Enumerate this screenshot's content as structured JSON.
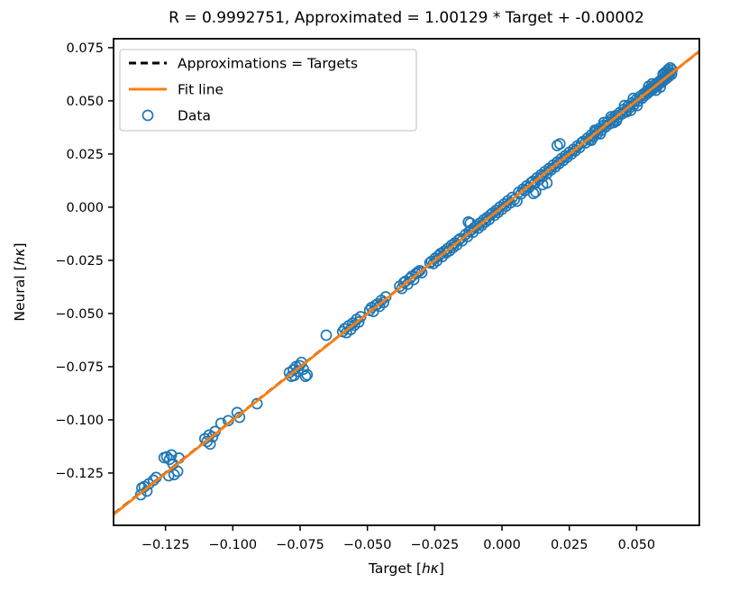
{
  "figure": {
    "title": "R = 0.9992751, Approximated = 1.00129 * Target + -0.00002"
  },
  "axes": {
    "xlabel": {
      "prefix": "Target [",
      "math": "hκ",
      "suffix": "]"
    },
    "ylabel": {
      "prefix": "Neural [",
      "math": "hκ",
      "suffix": "]"
    }
  },
  "chart_data": {
    "type": "scatter",
    "title": "R = 0.9992751, Approximated = 1.00129 * Target + -0.00002",
    "xlabel": "Target [hκ]",
    "ylabel": "Neural [hκ]",
    "xlim": [
      -0.1443,
      0.0733
    ],
    "ylim": [
      -0.1496,
      0.0792
    ],
    "grid": false,
    "legend_position": "upper left",
    "xticks": [
      -0.125,
      -0.1,
      -0.075,
      -0.05,
      -0.025,
      0.0,
      0.025,
      0.05
    ],
    "xtick_labels": [
      "−0.125",
      "−0.100",
      "−0.075",
      "−0.050",
      "−0.025",
      "0.000",
      "0.025",
      "0.050"
    ],
    "yticks": [
      0.075,
      0.05,
      0.025,
      0.0,
      -0.025,
      -0.05,
      -0.075,
      -0.1,
      -0.125
    ],
    "ytick_labels": [
      "0.075",
      "0.050",
      "0.025",
      "0.000",
      "−0.025",
      "−0.050",
      "−0.075",
      "−0.100",
      "−0.125"
    ],
    "legend": [
      {
        "label": "Approximations = Targets",
        "type": "dashed-line",
        "color": "#000000"
      },
      {
        "label": "Fit line",
        "type": "line",
        "color": "#ff7f0e"
      },
      {
        "label": "Data",
        "type": "circle",
        "color": "#1f77b4"
      }
    ],
    "identity_line": {
      "slope": 1.0,
      "intercept": 0.0,
      "color": "#000000",
      "style": "dashed"
    },
    "fit_line": {
      "slope": 1.00129,
      "intercept": -2e-05,
      "color": "#ff7f0e",
      "style": "solid",
      "r_value": 0.9992751
    },
    "marker": {
      "shape": "circle",
      "color": "#1f77b4",
      "filled": false,
      "radius_px": 5.5
    },
    "points": [
      [
        -0.1342,
        -0.1352
      ],
      [
        -0.1338,
        -0.132
      ],
      [
        -0.1329,
        -0.1314
      ],
      [
        -0.1319,
        -0.1335
      ],
      [
        -0.1312,
        -0.1301
      ],
      [
        -0.1295,
        -0.1284
      ],
      [
        -0.1285,
        -0.1271
      ],
      [
        -0.1255,
        -0.1178
      ],
      [
        -0.1245,
        -0.1174
      ],
      [
        -0.1238,
        -0.1263
      ],
      [
        -0.1235,
        -0.1186
      ],
      [
        -0.1228,
        -0.1165
      ],
      [
        -0.1222,
        -0.1208
      ],
      [
        -0.1218,
        -0.1258
      ],
      [
        -0.1205,
        -0.1242
      ],
      [
        -0.12,
        -0.118
      ],
      [
        -0.1104,
        -0.1089
      ],
      [
        -0.1096,
        -0.1102
      ],
      [
        -0.1088,
        -0.1072
      ],
      [
        -0.1084,
        -0.1114
      ],
      [
        -0.1075,
        -0.108
      ],
      [
        -0.1066,
        -0.1055
      ],
      [
        -0.1044,
        -0.1017
      ],
      [
        -0.1017,
        -0.1004
      ],
      [
        -0.0984,
        -0.0966
      ],
      [
        -0.0975,
        -0.0988
      ],
      [
        -0.091,
        -0.0924
      ],
      [
        -0.079,
        -0.0778
      ],
      [
        -0.0782,
        -0.0795
      ],
      [
        -0.0775,
        -0.0765
      ],
      [
        -0.0772,
        -0.0792
      ],
      [
        -0.0765,
        -0.075
      ],
      [
        -0.0758,
        -0.0772
      ],
      [
        -0.0752,
        -0.0745
      ],
      [
        -0.0745,
        -0.073
      ],
      [
        -0.0738,
        -0.0762
      ],
      [
        -0.073,
        -0.0795
      ],
      [
        -0.0724,
        -0.0788
      ],
      [
        -0.0653,
        -0.0602
      ],
      [
        -0.0592,
        -0.0585
      ],
      [
        -0.0585,
        -0.0572
      ],
      [
        -0.0578,
        -0.059
      ],
      [
        -0.057,
        -0.0558
      ],
      [
        -0.0562,
        -0.0575
      ],
      [
        -0.0555,
        -0.0545
      ],
      [
        -0.0548,
        -0.0555
      ],
      [
        -0.054,
        -0.0528
      ],
      [
        -0.0532,
        -0.054
      ],
      [
        -0.0525,
        -0.0515
      ],
      [
        -0.0492,
        -0.0485
      ],
      [
        -0.0485,
        -0.0472
      ],
      [
        -0.0478,
        -0.049
      ],
      [
        -0.047,
        -0.0462
      ],
      [
        -0.0462,
        -0.0455
      ],
      [
        -0.0455,
        -0.0466
      ],
      [
        -0.0448,
        -0.0438
      ],
      [
        -0.044,
        -0.0448
      ],
      [
        -0.0432,
        -0.0422
      ],
      [
        -0.038,
        -0.0372
      ],
      [
        -0.0372,
        -0.0382
      ],
      [
        -0.0365,
        -0.0355
      ],
      [
        -0.0358,
        -0.0348
      ],
      [
        -0.035,
        -0.0362
      ],
      [
        -0.0342,
        -0.0335
      ],
      [
        -0.0335,
        -0.0325
      ],
      [
        -0.0328,
        -0.034
      ],
      [
        -0.032,
        -0.0312
      ],
      [
        -0.0312,
        -0.0305
      ],
      [
        -0.0305,
        -0.0298
      ],
      [
        -0.0298,
        -0.0308
      ],
      [
        -0.0268,
        -0.0262
      ],
      [
        -0.0262,
        -0.0255
      ],
      [
        -0.0255,
        -0.0265
      ],
      [
        -0.0248,
        -0.024
      ],
      [
        -0.0242,
        -0.0252
      ],
      [
        -0.0235,
        -0.0228
      ],
      [
        -0.0228,
        -0.0218
      ],
      [
        -0.0222,
        -0.0232
      ],
      [
        -0.0215,
        -0.0208
      ],
      [
        -0.0208,
        -0.0215
      ],
      [
        -0.0202,
        -0.0195
      ],
      [
        -0.0195,
        -0.0205
      ],
      [
        -0.0188,
        -0.018
      ],
      [
        -0.0182,
        -0.019
      ],
      [
        -0.0175,
        -0.0168
      ],
      [
        -0.0168,
        -0.0178
      ],
      [
        -0.0162,
        -0.0155
      ],
      [
        -0.0155,
        -0.0148
      ],
      [
        -0.0148,
        -0.0158
      ],
      [
        -0.0135,
        -0.0128
      ],
      [
        -0.0128,
        -0.0138
      ],
      [
        -0.0122,
        -0.0115
      ],
      [
        -0.0125,
        -0.007
      ],
      [
        -0.0118,
        -0.0075
      ],
      [
        -0.0115,
        -0.0108
      ],
      [
        -0.0108,
        -0.0118
      ],
      [
        -0.0102,
        -0.0095
      ],
      [
        -0.0095,
        -0.0088
      ],
      [
        -0.0088,
        -0.0098
      ],
      [
        -0.0082,
        -0.0075
      ],
      [
        -0.0075,
        -0.0085
      ],
      [
        -0.0068,
        -0.006
      ],
      [
        -0.0062,
        -0.007
      ],
      [
        -0.0055,
        -0.0048
      ],
      [
        -0.0048,
        -0.0058
      ],
      [
        -0.0042,
        -0.0035
      ],
      [
        -0.0035,
        -0.0028
      ],
      [
        -0.0028,
        -0.0038
      ],
      [
        -0.0022,
        -0.0015
      ],
      [
        -0.0015,
        -0.0025
      ],
      [
        -0.0008,
        0.0
      ],
      [
        0.0,
        -0.001
      ],
      [
        0.0008,
        0.0015
      ],
      [
        0.0015,
        0.0005
      ],
      [
        0.0022,
        0.003
      ],
      [
        0.003,
        0.002
      ],
      [
        0.0038,
        0.0046
      ],
      [
        0.0046,
        0.0036
      ],
      [
        0.0055,
        0.0028
      ],
      [
        0.0117,
        0.0064
      ],
      [
        0.0125,
        0.0072
      ],
      [
        0.0151,
        0.0106
      ],
      [
        0.0167,
        0.0114
      ],
      [
        0.0062,
        0.007
      ],
      [
        0.007,
        0.0062
      ],
      [
        0.0078,
        0.0085
      ],
      [
        0.0085,
        0.0078
      ],
      [
        0.0092,
        0.01
      ],
      [
        0.01,
        0.0092
      ],
      [
        0.0108,
        0.0115
      ],
      [
        0.0115,
        0.0122
      ],
      [
        0.0122,
        0.0112
      ],
      [
        0.013,
        0.0138
      ],
      [
        0.0138,
        0.013
      ],
      [
        0.0145,
        0.0152
      ],
      [
        0.0152,
        0.0145
      ],
      [
        0.016,
        0.0168
      ],
      [
        0.0168,
        0.016
      ],
      [
        0.0175,
        0.0182
      ],
      [
        0.0182,
        0.0175
      ],
      [
        0.019,
        0.0198
      ],
      [
        0.0198,
        0.019
      ],
      [
        0.0205,
        0.0212
      ],
      [
        0.0212,
        0.0205
      ],
      [
        0.022,
        0.0228
      ],
      [
        0.0228,
        0.022
      ],
      [
        0.0235,
        0.0242
      ],
      [
        0.0242,
        0.0235
      ],
      [
        0.025,
        0.0258
      ],
      [
        0.0258,
        0.025
      ],
      [
        0.0265,
        0.0272
      ],
      [
        0.0272,
        0.0265
      ],
      [
        0.028,
        0.0288
      ],
      [
        0.0288,
        0.028
      ],
      [
        0.0295,
        0.0302
      ],
      [
        0.0205,
        0.029
      ],
      [
        0.0215,
        0.0298
      ],
      [
        0.0302,
        0.031
      ],
      [
        0.031,
        0.0302
      ],
      [
        0.0318,
        0.0325
      ],
      [
        0.0325,
        0.0318
      ],
      [
        0.0332,
        0.034
      ],
      [
        0.034,
        0.0332
      ],
      [
        0.0348,
        0.0355
      ],
      [
        0.0355,
        0.0348
      ],
      [
        0.0362,
        0.037
      ],
      [
        0.037,
        0.0362
      ],
      [
        0.0378,
        0.0385
      ],
      [
        0.0385,
        0.0378
      ],
      [
        0.0392,
        0.04
      ],
      [
        0.04,
        0.0392
      ],
      [
        0.0408,
        0.0415
      ],
      [
        0.0415,
        0.0408
      ],
      [
        0.0422,
        0.043
      ],
      [
        0.043,
        0.0422
      ],
      [
        0.0438,
        0.0445
      ],
      [
        0.0445,
        0.0438
      ],
      [
        0.0452,
        0.046
      ],
      [
        0.046,
        0.0452
      ],
      [
        0.0468,
        0.0475
      ],
      [
        0.0475,
        0.0468
      ],
      [
        0.0482,
        0.049
      ],
      [
        0.049,
        0.0482
      ],
      [
        0.0498,
        0.0505
      ],
      [
        0.0505,
        0.0498
      ],
      [
        0.0512,
        0.052
      ],
      [
        0.052,
        0.0512
      ],
      [
        0.0345,
        0.0362
      ],
      [
        0.0365,
        0.0345
      ],
      [
        0.0405,
        0.0425
      ],
      [
        0.0425,
        0.0405
      ],
      [
        0.0455,
        0.0478
      ],
      [
        0.0478,
        0.0455
      ],
      [
        0.0332,
        0.0315
      ],
      [
        0.0415,
        0.0398
      ],
      [
        0.0378,
        0.0398
      ],
      [
        0.0488,
        0.0512
      ],
      [
        0.0502,
        0.0478
      ],
      [
        0.0462,
        0.0448
      ],
      [
        0.0525,
        0.0532
      ],
      [
        0.053,
        0.0525
      ],
      [
        0.0535,
        0.0542
      ],
      [
        0.054,
        0.0535
      ],
      [
        0.0545,
        0.0552
      ],
      [
        0.055,
        0.0545
      ],
      [
        0.0555,
        0.0562
      ],
      [
        0.056,
        0.0555
      ],
      [
        0.0565,
        0.0572
      ],
      [
        0.057,
        0.0565
      ],
      [
        0.0575,
        0.0582
      ],
      [
        0.058,
        0.0575
      ],
      [
        0.0585,
        0.0592
      ],
      [
        0.059,
        0.0585
      ],
      [
        0.0595,
        0.0602
      ],
      [
        0.06,
        0.0595
      ],
      [
        0.0605,
        0.0612
      ],
      [
        0.061,
        0.0605
      ],
      [
        0.0615,
        0.0622
      ],
      [
        0.062,
        0.0615
      ],
      [
        0.0625,
        0.0632
      ],
      [
        0.063,
        0.0625
      ],
      [
        0.0612,
        0.064
      ],
      [
        0.0618,
        0.0648
      ],
      [
        0.0625,
        0.0655
      ],
      [
        0.0632,
        0.0645
      ],
      [
        0.0598,
        0.0625
      ],
      [
        0.0605,
        0.0632
      ],
      [
        0.0545,
        0.0568
      ],
      [
        0.0558,
        0.058
      ],
      [
        0.0572,
        0.055
      ],
      [
        0.0588,
        0.0565
      ]
    ]
  }
}
